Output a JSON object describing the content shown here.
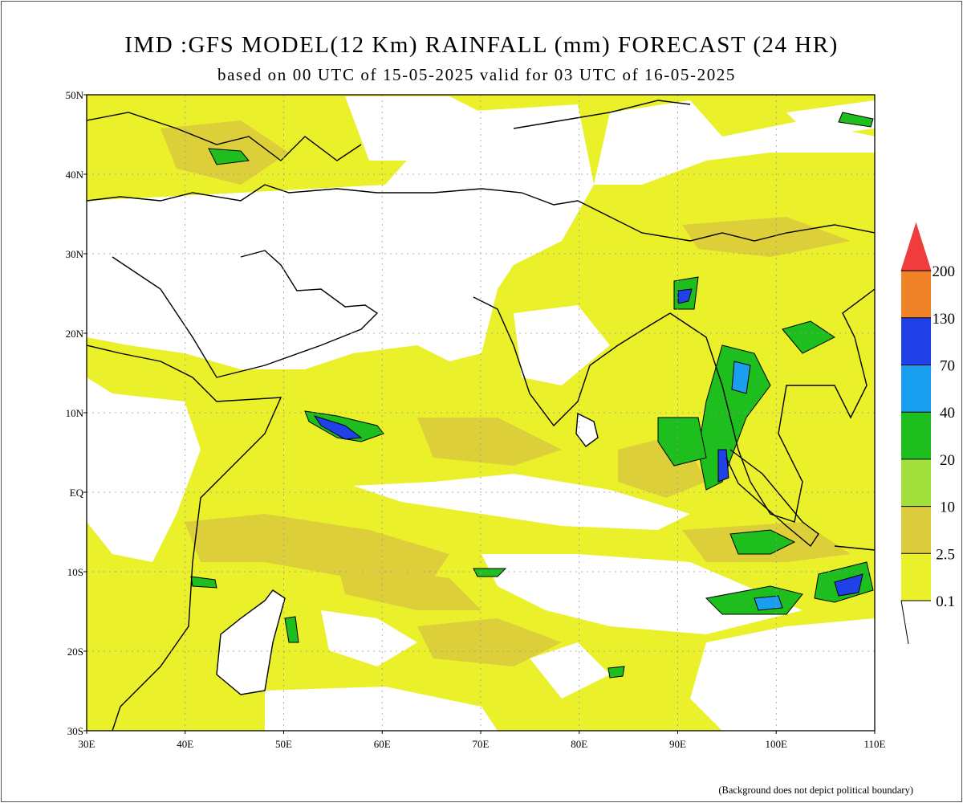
{
  "title": "IMD :GFS MODEL(12 Km) RAINFALL (mm) FORECAST (24 HR)",
  "subtitle": "based on 00 UTC of 15-05-2025 valid for 03 UTC of 16-05-2025",
  "lat_labels": [
    "50N",
    "40N",
    "30N",
    "20N",
    "10N",
    "EQ",
    "10S",
    "20S",
    "30S"
  ],
  "lon_labels": [
    "30E",
    "40E",
    "50E",
    "60E",
    "70E",
    "80E",
    "90E",
    "100E",
    "110E"
  ],
  "legend": [
    {
      "label": "0.1",
      "color": "#eaf02a"
    },
    {
      "label": "2.5",
      "color": "#dccb3c"
    },
    {
      "label": "10",
      "color": "#a2e03c"
    },
    {
      "label": "20",
      "color": "#1fbe1f"
    },
    {
      "label": "40",
      "color": "#1a9ff0"
    },
    {
      "label": "70",
      "color": "#2040e8"
    },
    {
      "label": "130",
      "color": "#f08228"
    },
    {
      "label": "200",
      "color": "#f03c3c"
    }
  ],
  "footnote": "(Background does not depict political boundary)"
}
